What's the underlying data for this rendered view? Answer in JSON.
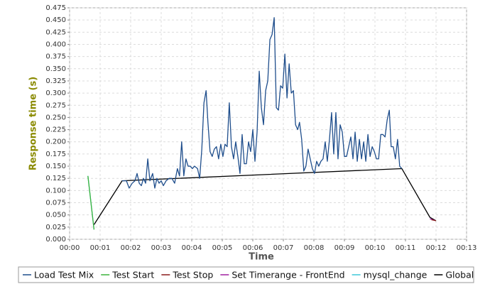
{
  "chart_data": {
    "type": "line",
    "x_label": "Time",
    "y_label": "Response time (s)",
    "xlim": [
      0,
      13
    ],
    "ylim": [
      0,
      0.475
    ],
    "grid": true,
    "legend": "bottom",
    "xticks": [
      {
        "value": 0,
        "label": "00:00"
      },
      {
        "value": 1,
        "label": "00:01"
      },
      {
        "value": 2,
        "label": "00:02"
      },
      {
        "value": 3,
        "label": "00:03"
      },
      {
        "value": 4,
        "label": "00:04"
      },
      {
        "value": 5,
        "label": "00:05"
      },
      {
        "value": 6,
        "label": "00:06"
      },
      {
        "value": 7,
        "label": "00:07"
      },
      {
        "value": 8,
        "label": "00:08"
      },
      {
        "value": 9,
        "label": "00:09"
      },
      {
        "value": 10,
        "label": "00:10"
      },
      {
        "value": 11,
        "label": "00:11"
      },
      {
        "value": 12,
        "label": "00:12"
      },
      {
        "value": 13,
        "label": "00:13"
      }
    ],
    "yticks": [
      {
        "value": 0,
        "label": "0.000"
      },
      {
        "value": 0.025,
        "label": "0.025"
      },
      {
        "value": 0.05,
        "label": "0.050"
      },
      {
        "value": 0.075,
        "label": "0.075"
      },
      {
        "value": 0.1,
        "label": "0.100"
      },
      {
        "value": 0.125,
        "label": "0.125"
      },
      {
        "value": 0.15,
        "label": "0.150"
      },
      {
        "value": 0.175,
        "label": "0.175"
      },
      {
        "value": 0.2,
        "label": "0.200"
      },
      {
        "value": 0.225,
        "label": "0.225"
      },
      {
        "value": 0.25,
        "label": "0.250"
      },
      {
        "value": 0.275,
        "label": "0.275"
      },
      {
        "value": 0.3,
        "label": "0.300"
      },
      {
        "value": 0.325,
        "label": "0.325"
      },
      {
        "value": 0.35,
        "label": "0.350"
      },
      {
        "value": 0.375,
        "label": "0.375"
      },
      {
        "value": 0.4,
        "label": "0.400"
      },
      {
        "value": 0.425,
        "label": "0.425"
      },
      {
        "value": 0.45,
        "label": "0.450"
      },
      {
        "value": 0.475,
        "label": "0.475"
      }
    ],
    "series": [
      {
        "name": "Load Test Mix",
        "color": "#1f4e8c",
        "x": [
          1.72,
          1.86,
          1.95,
          2.05,
          2.14,
          2.21,
          2.28,
          2.35,
          2.42,
          2.49,
          2.56,
          2.63,
          2.72,
          2.79,
          2.86,
          2.93,
          3.0,
          3.07,
          3.16,
          3.26,
          3.35,
          3.44,
          3.53,
          3.6,
          3.67,
          3.74,
          3.81,
          3.88,
          3.95,
          4.02,
          4.09,
          4.19,
          4.26,
          4.33,
          4.4,
          4.47,
          4.53,
          4.6,
          4.67,
          4.74,
          4.81,
          4.88,
          4.95,
          5.02,
          5.09,
          5.16,
          5.23,
          5.3,
          5.37,
          5.44,
          5.51,
          5.58,
          5.65,
          5.72,
          5.79,
          5.86,
          5.93,
          6.0,
          6.07,
          6.14,
          6.21,
          6.28,
          6.35,
          6.42,
          6.49,
          6.56,
          6.63,
          6.7,
          6.77,
          6.84,
          6.91,
          6.98,
          7.05,
          7.12,
          7.19,
          7.26,
          7.33,
          7.4,
          7.47,
          7.53,
          7.6,
          7.67,
          7.74,
          7.81,
          7.88,
          7.95,
          8.02,
          8.09,
          8.16,
          8.23,
          8.3,
          8.37,
          8.44,
          8.51,
          8.58,
          8.65,
          8.72,
          8.79,
          8.86,
          8.93,
          9.0,
          9.07,
          9.14,
          9.21,
          9.28,
          9.35,
          9.42,
          9.49,
          9.56,
          9.63,
          9.7,
          9.77,
          9.84,
          9.91,
          9.98,
          10.05,
          10.12,
          10.19,
          10.26,
          10.33,
          10.4,
          10.47,
          10.53,
          10.6,
          10.67,
          10.74,
          10.81,
          10.88
        ],
        "values": [
          0.12,
          0.12,
          0.105,
          0.115,
          0.12,
          0.135,
          0.115,
          0.11,
          0.125,
          0.115,
          0.165,
          0.12,
          0.135,
          0.105,
          0.125,
          0.115,
          0.12,
          0.11,
          0.12,
          0.125,
          0.125,
          0.115,
          0.145,
          0.13,
          0.2,
          0.13,
          0.165,
          0.15,
          0.15,
          0.145,
          0.15,
          0.145,
          0.125,
          0.185,
          0.28,
          0.305,
          0.24,
          0.18,
          0.17,
          0.185,
          0.19,
          0.165,
          0.195,
          0.17,
          0.195,
          0.19,
          0.28,
          0.19,
          0.165,
          0.2,
          0.17,
          0.135,
          0.215,
          0.155,
          0.155,
          0.2,
          0.18,
          0.225,
          0.16,
          0.22,
          0.345,
          0.27,
          0.235,
          0.305,
          0.325,
          0.41,
          0.42,
          0.455,
          0.27,
          0.265,
          0.315,
          0.31,
          0.38,
          0.29,
          0.36,
          0.3,
          0.305,
          0.235,
          0.225,
          0.24,
          0.205,
          0.14,
          0.15,
          0.185,
          0.165,
          0.145,
          0.135,
          0.16,
          0.15,
          0.16,
          0.165,
          0.2,
          0.16,
          0.205,
          0.26,
          0.175,
          0.26,
          0.165,
          0.235,
          0.22,
          0.17,
          0.17,
          0.19,
          0.21,
          0.165,
          0.22,
          0.16,
          0.205,
          0.165,
          0.2,
          0.16,
          0.215,
          0.17,
          0.19,
          0.18,
          0.165,
          0.165,
          0.215,
          0.215,
          0.21,
          0.245,
          0.265,
          0.19,
          0.19,
          0.165,
          0.205,
          0.15,
          0.145
        ]
      },
      {
        "name": "Test Start",
        "color": "#3cb33c",
        "x": [
          0.6,
          0.8
        ],
        "values": [
          0.13,
          0.02
        ]
      },
      {
        "name": "Test Stop",
        "color": "#8b1a1a",
        "x": [
          11.85,
          12.0
        ],
        "values": [
          0.04,
          0.038
        ]
      },
      {
        "name": "Set Timerange - FrontEnd",
        "color": "#a020a0",
        "x": [
          11.8,
          11.95
        ],
        "values": [
          0.042,
          0.039
        ]
      },
      {
        "name": "mysql_change",
        "color": "#3ec8d8",
        "x": [
          0.6,
          0.8
        ],
        "values": [
          0.13,
          0.02
        ]
      },
      {
        "name": "Global",
        "color": "#000000",
        "x": [
          0.8,
          1.72,
          10.88,
          11.8,
          12.0
        ],
        "values": [
          0.03,
          0.12,
          0.145,
          0.045,
          0.038
        ]
      }
    ]
  }
}
